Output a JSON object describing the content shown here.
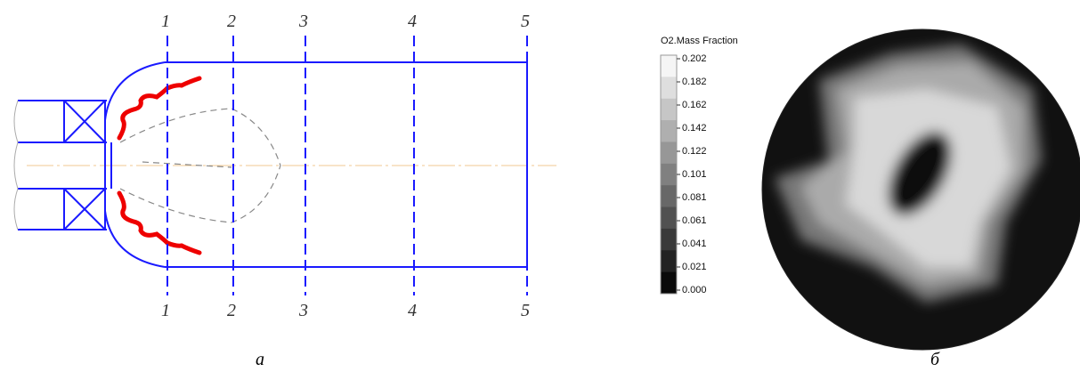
{
  "diagram_a": {
    "sections_top": [
      "1",
      "2",
      "3",
      "4",
      "5"
    ],
    "sections_bottom": [
      "1",
      "2",
      "3",
      "4",
      "5"
    ]
  },
  "colorbar": {
    "title": "O2.Mass Fraction",
    "ticks": [
      "0.202",
      "0.182",
      "0.162",
      "0.142",
      "0.122",
      "0.101",
      "0.081",
      "0.061",
      "0.041",
      "0.021",
      "0.000"
    ]
  },
  "captions": [
    "а",
    "б"
  ]
}
